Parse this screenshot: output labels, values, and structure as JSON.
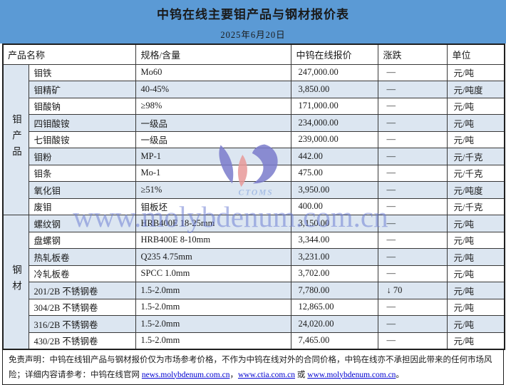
{
  "title": "中钨在线主要钼产品与钢材报价表",
  "date": "2025年6月20日",
  "table": {
    "columns": [
      "产品名称",
      "规格/含量",
      "中钨在线报价",
      "涨跌",
      "单位"
    ],
    "groups": [
      {
        "label": "钼产品",
        "rowspan": 9
      },
      {
        "label": "钢材",
        "rowspan": 8
      }
    ],
    "rows": [
      {
        "product": "钼铁",
        "spec": "Mo60",
        "price": "247,000.00",
        "change": "—",
        "unit": "元/吨"
      },
      {
        "product": "钼精矿",
        "spec": "40-45%",
        "price": "3,850.00",
        "change": "—",
        "unit": "元/吨度"
      },
      {
        "product": "钼酸钠",
        "spec": "≥98%",
        "price": "171,000.00",
        "change": "—",
        "unit": "元/吨"
      },
      {
        "product": "四钼酸铵",
        "spec": "一级品",
        "price": "234,000.00",
        "change": "—",
        "unit": "元/吨"
      },
      {
        "product": "七钼酸铵",
        "spec": "一级品",
        "price": "239,000.00",
        "change": "—",
        "unit": "元/吨"
      },
      {
        "product": "钼粉",
        "spec": "MP-1",
        "price": "442.00",
        "change": "—",
        "unit": "元/千克"
      },
      {
        "product": "钼条",
        "spec": "Mo-1",
        "price": "475.00",
        "change": "—",
        "unit": "元/千克"
      },
      {
        "product": "氧化钼",
        "spec": "≥51%",
        "price": "3,950.00",
        "change": "—",
        "unit": "元/吨度"
      },
      {
        "product": "废钼",
        "spec": "钼板坯",
        "price": "400.00",
        "change": "—",
        "unit": "元/千克"
      },
      {
        "product": "螺纹钢",
        "spec": "HRB400E 18-25mm",
        "price": "3,150.00",
        "change": "—",
        "unit": "元/吨"
      },
      {
        "product": "盘螺钢",
        "spec": "HRB400E 8-10mm",
        "price": "3,344.00",
        "change": "—",
        "unit": "元/吨"
      },
      {
        "product": "热轧板卷",
        "spec": "Q235 4.75mm",
        "price": "3,231.00",
        "change": "—",
        "unit": "元/吨"
      },
      {
        "product": "冷轧板卷",
        "spec": "SPCC 1.0mm",
        "price": "3,702.00",
        "change": "—",
        "unit": "元/吨"
      },
      {
        "product": "201/2B 不锈钢卷",
        "spec": "1.5-2.0mm",
        "price": "7,780.00",
        "change": "↓ 70",
        "unit": "元/吨"
      },
      {
        "product": "304/2B 不锈钢卷",
        "spec": "1.5-2.0mm",
        "price": "12,865.00",
        "change": "—",
        "unit": "元/吨"
      },
      {
        "product": "316/2B 不锈钢卷",
        "spec": "1.5-2.0mm",
        "price": "24,020.00",
        "change": "—",
        "unit": "元/吨"
      },
      {
        "product": "430/2B 不锈钢卷",
        "spec": "1.5-2.0mm",
        "price": "7,465.00",
        "change": "—",
        "unit": "元/吨"
      }
    ]
  },
  "watermark": {
    "site_text": "www.molybdenum.com.cn",
    "logo_text": "CTOMS"
  },
  "footer": {
    "text_before_links": "免责声明：中钨在线钼产品与钢材报价仅为市场参考价格，不作为中钨在线对外的合同价格，中钨在线亦不承担因此带来的任何市场风险；详细内容请参考：中钨在线官网 ",
    "link1": "news.molybdenum.com.cn",
    "sep1": "，",
    "link2": "www.ctia.com.cn",
    "sep2": " 或 ",
    "link3": "www.molybdenum.com.cn",
    "period": "。"
  },
  "colors": {
    "title_band_blue": "#5b9ad5",
    "row_stripe_blue": "#dce6f1",
    "link_blue": "#0000d0",
    "watermark_periwinkle": "#7080d4",
    "logo_blue": "#7b7ccc",
    "logo_red": "#e89a9a"
  }
}
